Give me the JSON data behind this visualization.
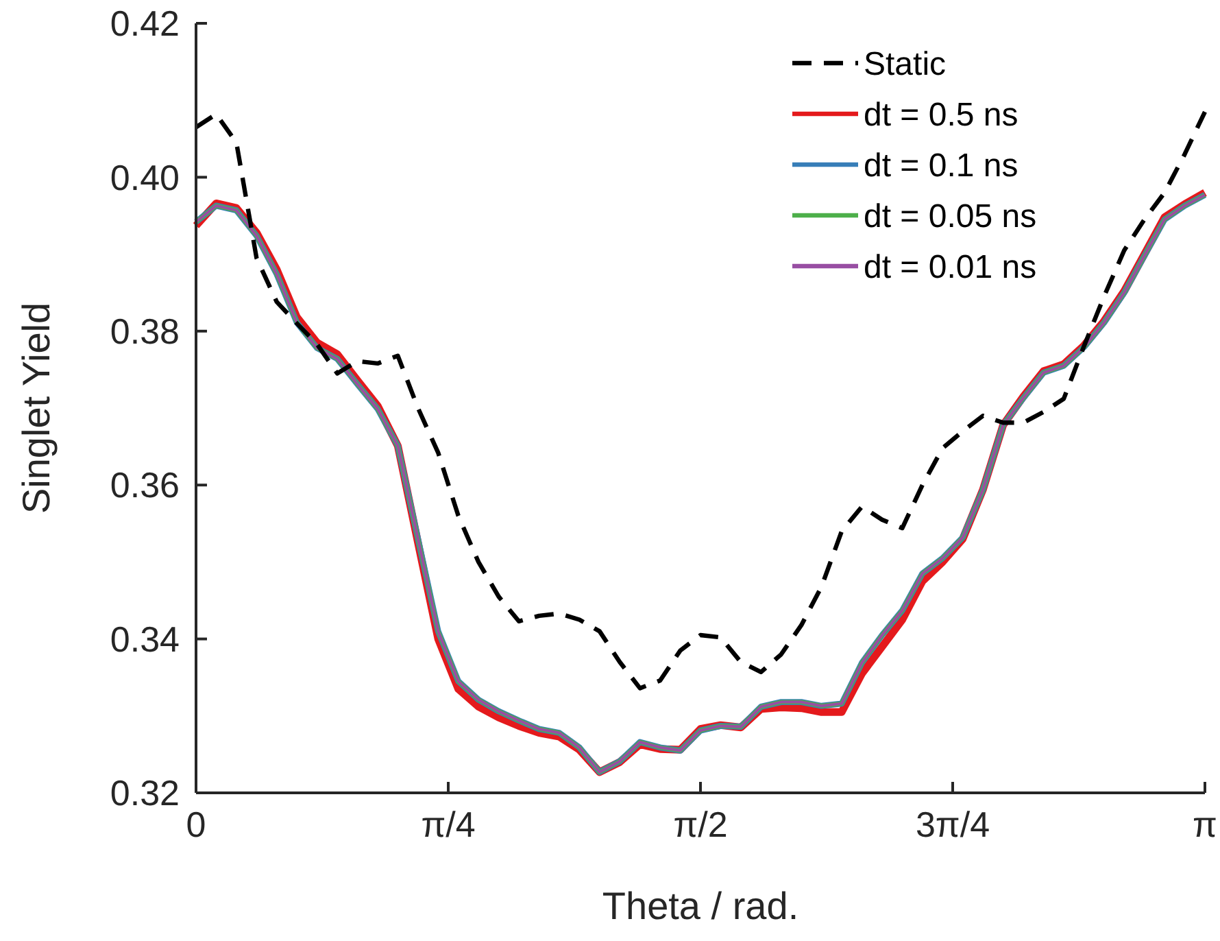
{
  "chart_data": {
    "type": "line",
    "xlabel": "Theta / rad.",
    "ylabel": "Singlet Yield",
    "x": [
      0,
      0.0628,
      0.1257,
      0.1885,
      0.2513,
      0.3142,
      0.377,
      0.4398,
      0.5027,
      0.5655,
      0.6283,
      0.6912,
      0.754,
      0.8168,
      0.8796,
      0.9425,
      1.0053,
      1.0681,
      1.131,
      1.1938,
      1.2566,
      1.3195,
      1.3823,
      1.4451,
      1.508,
      1.5708,
      1.6336,
      1.6965,
      1.7593,
      1.8221,
      1.885,
      1.9478,
      2.0106,
      2.0735,
      2.1363,
      2.1991,
      2.2619,
      2.3248,
      2.3876,
      2.4504,
      2.5133,
      2.5761,
      2.6389,
      2.7018,
      2.7646,
      2.8274,
      2.8903,
      2.9531,
      3.0159,
      3.0788,
      3.1416
    ],
    "xlim": [
      0,
      3.1416
    ],
    "xticks": [
      0,
      {
        "value": 0.7854,
        "label": "π/4"
      },
      {
        "value": 1.5708,
        "label": "π/2"
      },
      {
        "value": 2.3562,
        "label": "3π/4"
      },
      {
        "value": 3.1416,
        "label": "π"
      }
    ],
    "ylim": [
      0.32,
      0.42
    ],
    "yticks": [
      0.32,
      0.34,
      0.36,
      0.38,
      {
        "value": 0.4,
        "label": "0.40"
      },
      0.42
    ],
    "grid": false,
    "legend": "top right",
    "series": [
      {
        "name": "Static",
        "color": "#000000",
        "line_style": "dashed",
        "values": [
          0.4065,
          0.4082,
          0.4045,
          0.3895,
          0.3838,
          0.381,
          0.3783,
          0.3745,
          0.3761,
          0.3758,
          0.3768,
          0.37,
          0.3642,
          0.356,
          0.35,
          0.3455,
          0.3423,
          0.343,
          0.3433,
          0.3425,
          0.341,
          0.337,
          0.3336,
          0.3346,
          0.3385,
          0.3405,
          0.3402,
          0.337,
          0.3357,
          0.338,
          0.3418,
          0.3468,
          0.354,
          0.3572,
          0.3555,
          0.3544,
          0.36,
          0.3648,
          0.367,
          0.369,
          0.3681,
          0.3681,
          0.3695,
          0.3712,
          0.378,
          0.3845,
          0.3905,
          0.3945,
          0.398,
          0.403,
          0.4085
        ]
      },
      {
        "name": "dt = 0.5 ns",
        "color": "#e41a1c",
        "line_style": "solid",
        "values": [
          0.3937,
          0.3966,
          0.396,
          0.3928,
          0.388,
          0.3818,
          0.3785,
          0.377,
          0.3736,
          0.3703,
          0.3651,
          0.3525,
          0.34,
          0.3335,
          0.3312,
          0.3298,
          0.3287,
          0.3278,
          0.3273,
          0.3256,
          0.3227,
          0.324,
          0.3263,
          0.3257,
          0.3256,
          0.3283,
          0.3288,
          0.3285,
          0.3309,
          0.3311,
          0.331,
          0.3305,
          0.3305,
          0.3355,
          0.339,
          0.3425,
          0.3475,
          0.35,
          0.353,
          0.3594,
          0.3678,
          0.3715,
          0.3748,
          0.3757,
          0.3781,
          0.3813,
          0.3852,
          0.39,
          0.3948,
          0.3965,
          0.398
        ]
      },
      {
        "name": "dt = 0.1 ns",
        "color": "#377eb8",
        "line_style": "solid",
        "values": [
          0.3942,
          0.3963,
          0.3957,
          0.3924,
          0.3874,
          0.3811,
          0.3778,
          0.3764,
          0.3731,
          0.3699,
          0.3651,
          0.353,
          0.341,
          0.3345,
          0.3321,
          0.3306,
          0.3294,
          0.3283,
          0.3278,
          0.3259,
          0.3227,
          0.3241,
          0.3266,
          0.3259,
          0.3255,
          0.3281,
          0.3287,
          0.3286,
          0.3312,
          0.3318,
          0.3318,
          0.3313,
          0.3316,
          0.3369,
          0.3405,
          0.3437,
          0.3485,
          0.3505,
          0.3532,
          0.3594,
          0.3678,
          0.3713,
          0.3746,
          0.3755,
          0.3779,
          0.3811,
          0.385,
          0.3898,
          0.3945,
          0.3963,
          0.3977
        ]
      },
      {
        "name": "dt = 0.05 ns",
        "color": "#4daf4a",
        "line_style": "solid",
        "values": [
          0.3942,
          0.3963,
          0.3957,
          0.3924,
          0.3874,
          0.3811,
          0.3778,
          0.3764,
          0.3731,
          0.3699,
          0.3651,
          0.353,
          0.341,
          0.3345,
          0.3321,
          0.3306,
          0.3294,
          0.3283,
          0.3278,
          0.3259,
          0.3227,
          0.3241,
          0.3266,
          0.3259,
          0.3255,
          0.3281,
          0.3287,
          0.3286,
          0.3312,
          0.3318,
          0.3318,
          0.3313,
          0.3316,
          0.3369,
          0.3405,
          0.3437,
          0.3485,
          0.3505,
          0.3532,
          0.3594,
          0.3678,
          0.3713,
          0.3746,
          0.3755,
          0.3779,
          0.3811,
          0.385,
          0.3898,
          0.3945,
          0.3963,
          0.3977
        ]
      },
      {
        "name": "dt = 0.01 ns",
        "color": "#984ea3",
        "line_style": "solid",
        "values": [
          0.3942,
          0.3963,
          0.3957,
          0.3924,
          0.3874,
          0.3811,
          0.3778,
          0.3764,
          0.3731,
          0.3699,
          0.3651,
          0.353,
          0.341,
          0.3345,
          0.3321,
          0.3306,
          0.3294,
          0.3283,
          0.3278,
          0.3259,
          0.3227,
          0.3241,
          0.3266,
          0.3259,
          0.3255,
          0.3281,
          0.3287,
          0.3286,
          0.3312,
          0.3318,
          0.3318,
          0.3313,
          0.3316,
          0.3369,
          0.3405,
          0.3437,
          0.3485,
          0.3505,
          0.3532,
          0.3594,
          0.3678,
          0.3713,
          0.3746,
          0.3755,
          0.3779,
          0.3811,
          0.385,
          0.3898,
          0.3945,
          0.3963,
          0.3977
        ]
      }
    ]
  }
}
